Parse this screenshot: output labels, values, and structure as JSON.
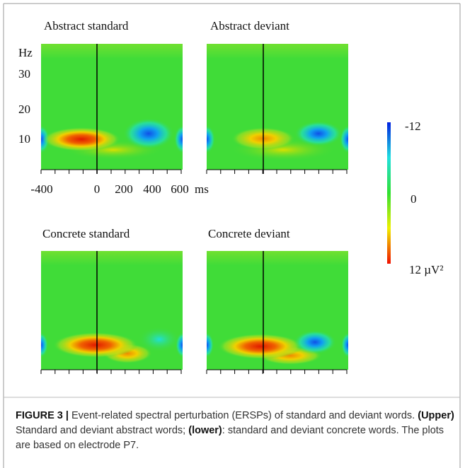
{
  "figure": {
    "panels": [
      {
        "title": "Abstract standard"
      },
      {
        "title": "Abstract deviant"
      },
      {
        "title": "Concrete standard"
      },
      {
        "title": "Concrete deviant"
      }
    ],
    "y_axis": {
      "unit": "Hz",
      "ticks": [
        "30",
        "20",
        "10"
      ]
    },
    "x_axis": {
      "ticks": [
        "-400",
        "0",
        "200",
        "400",
        "600"
      ],
      "unit": "ms"
    },
    "colorbar": {
      "labels": [
        "-12",
        "0",
        "12 µV²"
      ]
    }
  },
  "caption": {
    "label": "FIGURE 3 |",
    "intro": " Event-related spectral perturbation (ERSPs) of standard and deviant words. ",
    "upper_label": "(Upper)",
    "upper_text": " Standard and deviant abstract words; ",
    "lower_label": "(lower)",
    "lower_text": ": standard and deviant concrete words. The plots are based on electrode P7."
  }
}
